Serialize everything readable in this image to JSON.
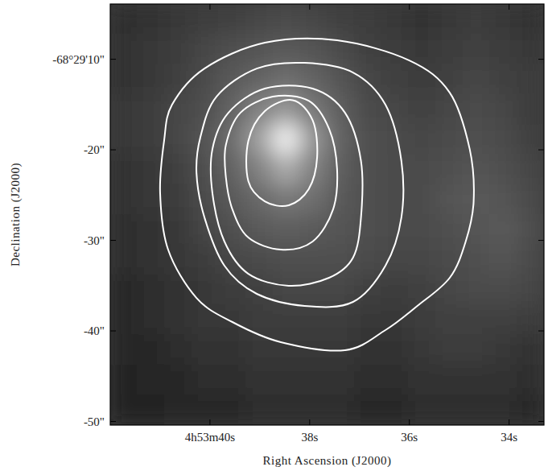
{
  "chart_data": {
    "type": "image",
    "x_label": "Right Ascension (J2000)",
    "y_label": "Declination (J2000)",
    "xlim": [
      42.0,
      33.3
    ],
    "ylim": [
      -50.4,
      -3.9
    ],
    "xticks": [
      {
        "value": 40,
        "label": "4h53m40s"
      },
      {
        "value": 38,
        "label": "38s"
      },
      {
        "value": 36,
        "label": "36s"
      },
      {
        "value": 34,
        "label": "34s"
      }
    ],
    "yticks": [
      {
        "value": -10,
        "label": "-68°29'10\""
      },
      {
        "value": -20,
        "label": "-20\""
      },
      {
        "value": -30,
        "label": "-30\""
      },
      {
        "value": -40,
        "label": "-40\""
      },
      {
        "value": -50,
        "label": "-50\""
      }
    ],
    "image": {
      "values": [
        [
          45,
          50,
          55,
          60,
          65,
          70,
          75,
          70,
          65,
          60,
          55,
          50,
          55,
          60,
          55,
          50
        ],
        [
          50,
          55,
          60,
          70,
          80,
          85,
          90,
          85,
          75,
          65,
          60,
          55,
          60,
          65,
          60,
          55
        ],
        [
          50,
          55,
          65,
          75,
          90,
          100,
          110,
          100,
          85,
          70,
          65,
          60,
          65,
          70,
          65,
          60
        ],
        [
          55,
          60,
          70,
          80,
          100,
          130,
          150,
          120,
          95,
          75,
          70,
          65,
          70,
          75,
          70,
          60
        ],
        [
          55,
          60,
          70,
          85,
          110,
          160,
          240,
          150,
          100,
          80,
          75,
          70,
          75,
          80,
          75,
          65
        ],
        [
          50,
          55,
          65,
          80,
          100,
          130,
          170,
          130,
          95,
          80,
          75,
          75,
          80,
          85,
          80,
          70
        ],
        [
          50,
          55,
          60,
          75,
          90,
          105,
          120,
          110,
          90,
          80,
          75,
          75,
          85,
          90,
          85,
          75
        ],
        [
          45,
          50,
          55,
          70,
          80,
          90,
          95,
          90,
          85,
          80,
          75,
          75,
          80,
          85,
          90,
          80
        ],
        [
          45,
          50,
          55,
          60,
          70,
          75,
          80,
          80,
          80,
          75,
          70,
          70,
          75,
          80,
          85,
          75
        ],
        [
          40,
          45,
          50,
          55,
          60,
          65,
          70,
          70,
          70,
          65,
          60,
          65,
          70,
          75,
          75,
          70
        ],
        [
          40,
          45,
          50,
          55,
          55,
          60,
          60,
          60,
          60,
          55,
          55,
          60,
          65,
          65,
          65,
          60
        ],
        [
          40,
          40,
          45,
          50,
          50,
          55,
          55,
          55,
          55,
          50,
          50,
          55,
          60,
          60,
          55,
          50
        ],
        [
          35,
          40,
          40,
          45,
          45,
          50,
          50,
          50,
          50,
          45,
          45,
          50,
          50,
          50,
          50,
          45
        ],
        [
          35,
          35,
          40,
          40,
          40,
          45,
          45,
          45,
          45,
          40,
          40,
          45,
          45,
          45,
          45,
          40
        ]
      ]
    },
    "contours": [
      {
        "x": [
          40.92,
          40.76,
          40.11,
          38.9,
          37.45,
          36.0,
          35.19,
          34.79,
          34.71,
          34.87,
          35.19,
          35.84,
          36.48,
          37.29,
          38.58,
          39.55,
          40.27,
          40.84,
          41.0
        ],
        "y": [
          -19.02,
          -15.02,
          -11.02,
          -8.18,
          -7.91,
          -10.13,
          -13.69,
          -19.91,
          -25.69,
          -30.13,
          -34.13,
          -37.24,
          -39.91,
          -42.13,
          -41.24,
          -39.02,
          -36.36,
          -31.02,
          -24.8
        ]
      },
      {
        "x": [
          40.19,
          39.87,
          39.06,
          38.1,
          37.13,
          36.48,
          36.16,
          36.16,
          36.48,
          37.13,
          38.1,
          39.06,
          39.71,
          40.11,
          40.27
        ],
        "y": [
          -18.58,
          -14.13,
          -11.02,
          -10.4,
          -11.47,
          -15.02,
          -21.24,
          -27.47,
          -32.8,
          -36.8,
          -37.24,
          -35.91,
          -32.8,
          -27.47,
          -22.58
        ]
      },
      {
        "x": [
          39.95,
          39.63,
          38.9,
          37.94,
          37.29,
          36.97,
          36.97,
          37.13,
          37.61,
          38.42,
          39.23,
          39.71,
          39.95
        ],
        "y": [
          -19.91,
          -15.91,
          -13.24,
          -13.24,
          -15.91,
          -21.24,
          -27.47,
          -31.91,
          -34.13,
          -35.02,
          -33.69,
          -30.13,
          -24.8
        ]
      },
      {
        "x": [
          39.68,
          39.39,
          38.74,
          38.02,
          37.61,
          37.45,
          37.53,
          37.94,
          38.58,
          39.23,
          39.55,
          39.68
        ],
        "y": [
          -19.47,
          -15.91,
          -14.13,
          -14.58,
          -17.69,
          -22.13,
          -26.58,
          -30.13,
          -31.02,
          -29.69,
          -26.58,
          -23.02
        ]
      },
      {
        "x": [
          39.23,
          38.9,
          38.34,
          37.94,
          37.85,
          38.02,
          38.42,
          38.9,
          39.23
        ],
        "y": [
          -19.02,
          -15.73,
          -14.52,
          -16.74,
          -20.8,
          -24.36,
          -26.13,
          -25.69,
          -23.47
        ]
      }
    ],
    "color": "#ffffff"
  }
}
